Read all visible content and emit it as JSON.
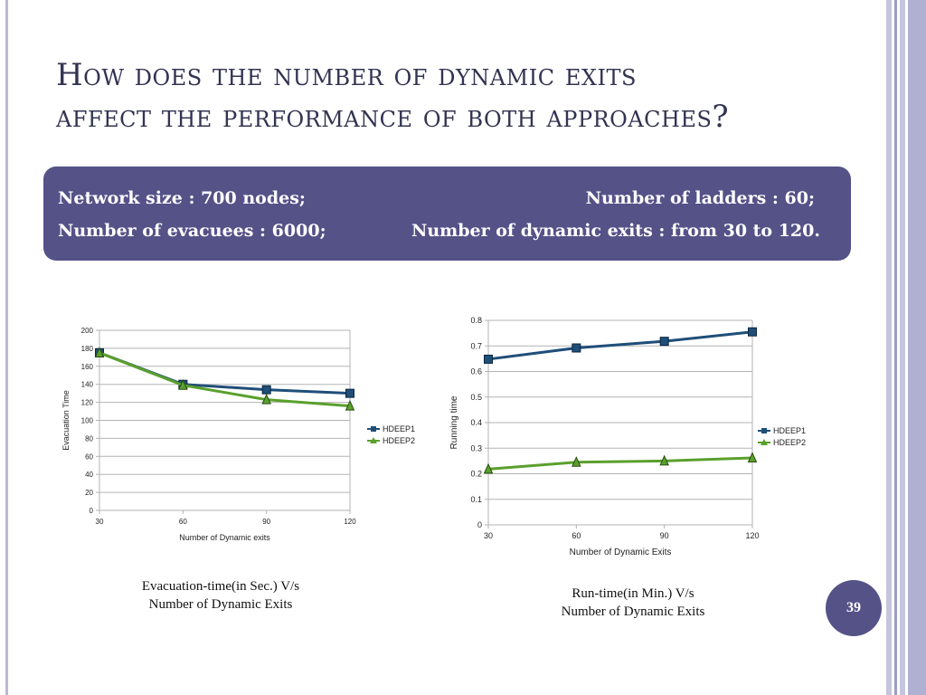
{
  "slide": {
    "title_line1": "How does the number of dynamic exits",
    "title_line2": "affect the performance of both approaches?",
    "page_number": "39",
    "accent_color": "#545287"
  },
  "info": {
    "network_size": "Network size : 700 nodes;",
    "ladders": "Number of ladders : 60;",
    "evacuees": "Number of evacuees : 6000;",
    "dynamic_exits": "Number of dynamic exits : from 30 to 120."
  },
  "captions": {
    "left_line1": "Evacuation-time(in Sec.) V/s",
    "left_line2": "Number of Dynamic Exits",
    "right_line1": "Run-time(in Min.) V/s",
    "right_line2": "Number of Dynamic Exits"
  },
  "chart_data": [
    {
      "type": "line",
      "xlabel": "Number of Dynamic exits",
      "ylabel": "Evacuation Time",
      "x": [
        30,
        60,
        90,
        120
      ],
      "xticks": [
        "30",
        "60",
        "90",
        "120"
      ],
      "ylim": [
        0,
        200
      ],
      "yticks": [
        "0",
        "20",
        "40",
        "60",
        "80",
        "100",
        "120",
        "140",
        "160",
        "180",
        "200"
      ],
      "grid": true,
      "legend": "right",
      "series": [
        {
          "name": "HDEEP1",
          "marker": "square",
          "color": "#1f4e79",
          "values": [
            175,
            140,
            134,
            130
          ]
        },
        {
          "name": "HDEEP2",
          "marker": "triangle",
          "color": "#5aa02c",
          "values": [
            175,
            139,
            123,
            116
          ]
        }
      ]
    },
    {
      "type": "line",
      "xlabel": "Number of Dynamic Exits",
      "ylabel": "Running time",
      "x": [
        30,
        60,
        90,
        120
      ],
      "xticks": [
        "30",
        "60",
        "90",
        "120"
      ],
      "ylim": [
        0,
        0.8
      ],
      "yticks": [
        "0",
        "0.1",
        "0.2",
        "0.3",
        "0.4",
        "0.5",
        "0.6",
        "0.7",
        "0.8"
      ],
      "grid": true,
      "legend": "right",
      "series": [
        {
          "name": "HDEEP1",
          "marker": "square",
          "color": "#1f4e79",
          "values": [
            0.648,
            0.692,
            0.718,
            0.755
          ]
        },
        {
          "name": "HDEEP2",
          "marker": "triangle",
          "color": "#5aa02c",
          "values": [
            0.218,
            0.245,
            0.25,
            0.262
          ]
        }
      ]
    }
  ]
}
